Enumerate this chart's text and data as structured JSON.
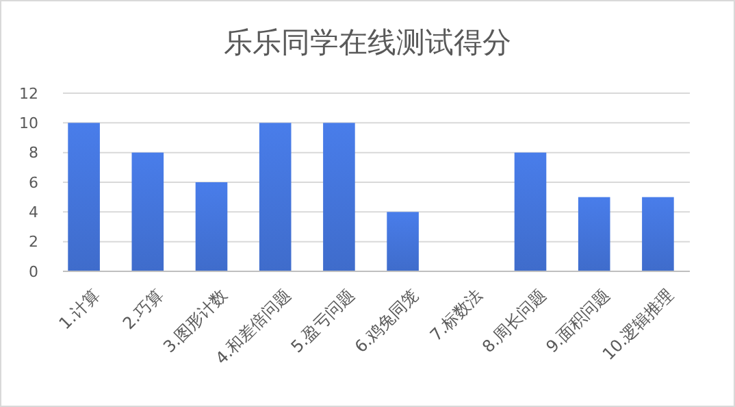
{
  "chart_data": {
    "type": "bar",
    "title": "乐乐同学在线测试得分",
    "categories": [
      "1.计算",
      "2.巧算",
      "3.图形计数",
      "4.和差倍问题",
      "5.盈亏问题",
      "6.鸡兔同笼",
      "7.标数法",
      "8.周长问题",
      "9.面积问题",
      "10.逻辑推理"
    ],
    "values": [
      10,
      8,
      6,
      10,
      10,
      4,
      0,
      8,
      5,
      5
    ],
    "color": "#3f6ccb",
    "ylim": [
      0,
      12
    ],
    "yticks": [
      0,
      2,
      4,
      6,
      8,
      10,
      12
    ],
    "grid": "y"
  }
}
